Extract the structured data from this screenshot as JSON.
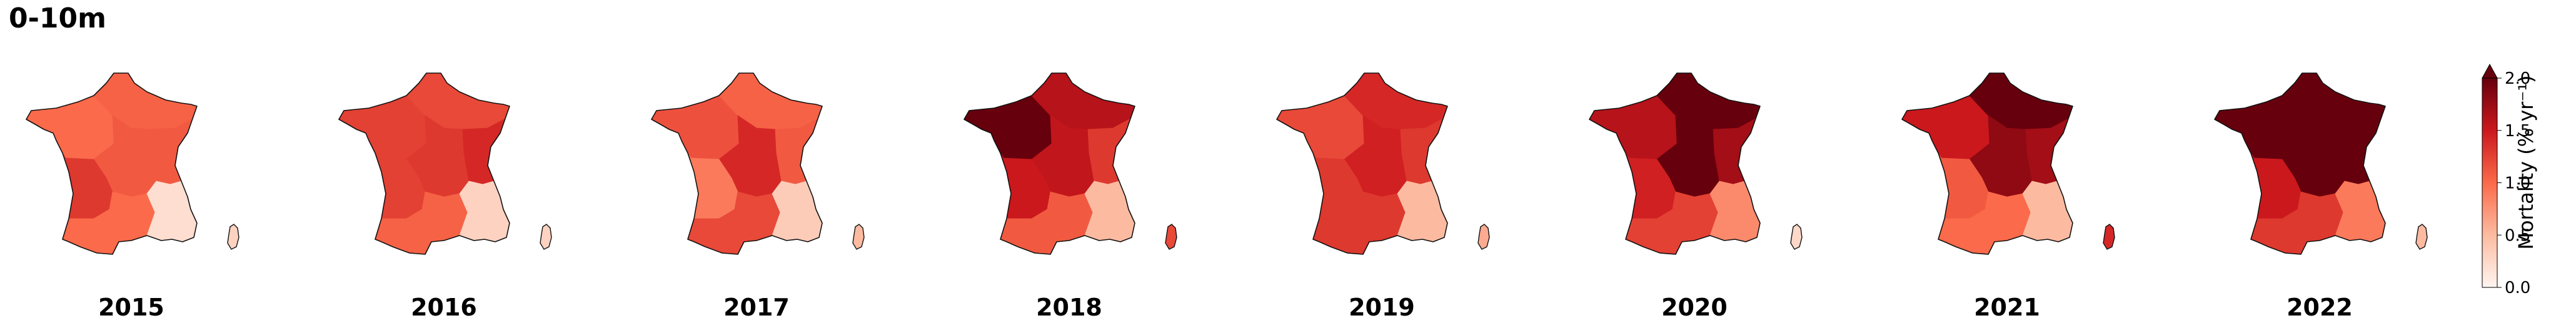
{
  "title": "0-10m",
  "colorbar": {
    "label": "Mortality (% yr⁻¹)",
    "ticks": [
      "0.0",
      "0.5",
      "1.0",
      "1.5",
      "2.0"
    ],
    "vmin": 0.0,
    "vmax": 2.0,
    "extend": "max",
    "colormap": "Reds"
  },
  "years": [
    {
      "year": "2015",
      "regions": {
        "nw": 1.0,
        "ne": 1.05,
        "ce": 1.1,
        "e": 1.1,
        "sw": 1.3,
        "s": 1.0,
        "se": 0.2,
        "cor": 0.3
      }
    },
    {
      "year": "2016",
      "regions": {
        "nw": 1.25,
        "ne": 1.2,
        "ce": 1.3,
        "e": 1.4,
        "sw": 1.25,
        "s": 1.05,
        "se": 0.3,
        "cor": 0.3
      }
    },
    {
      "year": "2017",
      "regions": {
        "nw": 1.15,
        "ne": 1.05,
        "ce": 1.4,
        "e": 1.1,
        "sw": 0.9,
        "s": 1.2,
        "se": 0.35,
        "cor": 0.5
      }
    },
    {
      "year": "2018",
      "regions": {
        "nw": 2.0,
        "ne": 1.6,
        "ce": 1.55,
        "e": 1.3,
        "sw": 1.5,
        "s": 1.1,
        "se": 0.5,
        "cor": 1.2
      }
    },
    {
      "year": "2019",
      "regions": {
        "nw": 1.2,
        "ne": 1.4,
        "ce": 1.45,
        "e": 1.3,
        "sw": 1.3,
        "s": 1.3,
        "se": 0.5,
        "cor": 0.6
      }
    },
    {
      "year": "2020",
      "regions": {
        "nw": 1.6,
        "ne": 2.0,
        "ce": 2.0,
        "e": 1.7,
        "sw": 1.45,
        "s": 1.25,
        "se": 0.8,
        "cor": 0.25
      }
    },
    {
      "year": "2021",
      "regions": {
        "nw": 1.5,
        "ne": 2.0,
        "ce": 1.8,
        "e": 1.7,
        "sw": 1.1,
        "s": 1.0,
        "se": 0.5,
        "cor": 1.4
      }
    },
    {
      "year": "2022",
      "regions": {
        "nw": 2.0,
        "ne": 2.0,
        "ce": 2.0,
        "e": 2.0,
        "sw": 1.5,
        "s": 1.3,
        "se": 0.9,
        "cor": 0.5
      }
    }
  ]
}
